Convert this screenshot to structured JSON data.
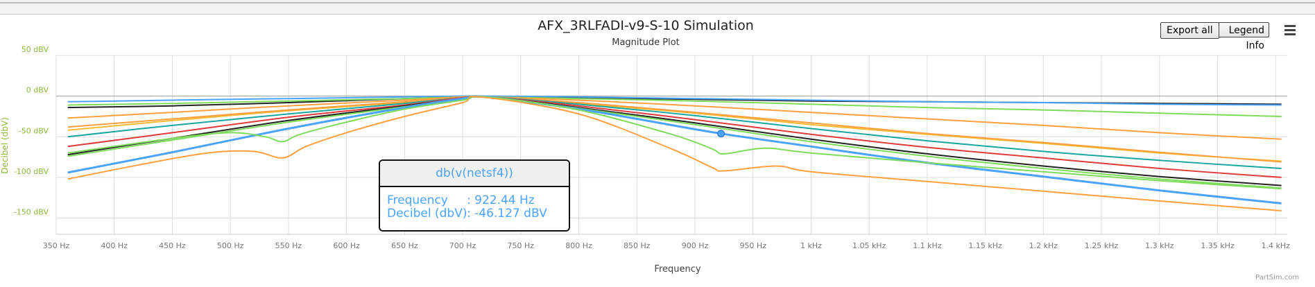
{
  "header": {
    "title": "AFX_3RLFADI-v9-S-10 Simulation",
    "subtitle": "Magnitude Plot",
    "export_label": "Export all",
    "legend_label": "Legend Info",
    "menu_icon": "hamburger-menu-icon"
  },
  "tooltip": {
    "series": "db(v(netsf4))",
    "frequency_label": "Frequency",
    "frequency_value": ": 922.44 Hz",
    "decibel_label": "Decibel (dbV)",
    "decibel_value": ": -46.127 dBV",
    "point": [
      922.44,
      -46.127
    ]
  },
  "credit": "PartSim.com",
  "chart_data": {
    "type": "line",
    "title": "AFX_3RLFADI-v9-S-10 Simulation",
    "subtitle": "Magnitude Plot",
    "xlabel": "Frequency",
    "ylabel": "Decibel (dbV)",
    "xlim": [
      350,
      1410
    ],
    "ylim": [
      -170,
      50
    ],
    "x_ticks": [
      350,
      400,
      450,
      500,
      550,
      600,
      650,
      700,
      750,
      800,
      850,
      900,
      950,
      1000,
      1050,
      1100,
      1150,
      1200,
      1250,
      1300,
      1350,
      1400
    ],
    "x_tick_labels": [
      "350 Hz",
      "400 Hz",
      "450 Hz",
      "500 Hz",
      "550 Hz",
      "600 Hz",
      "650 Hz",
      "700 Hz",
      "750 Hz",
      "800 Hz",
      "850 Hz",
      "900 Hz",
      "950 Hz",
      "1 kHz",
      "1.05 kHz",
      "1.1 kHz",
      "1.15 kHz",
      "1.2 kHz",
      "1.25 kHz",
      "1.3 kHz",
      "1.35 kHz",
      "1.4 kHz"
    ],
    "y_ticks": [
      50,
      0,
      -50,
      -100,
      -150
    ],
    "y_tick_labels": [
      "50 dBV",
      "0 dBV",
      "-50 dBV",
      "-100 dBV",
      "-150 dBV"
    ],
    "grid": true,
    "legend": "none",
    "series": [
      {
        "color": "#222222",
        "width": 2,
        "x": [
          360,
          450,
          550,
          650,
          700,
          720,
          800,
          900,
          1000,
          1100,
          1200,
          1300,
          1405
        ],
        "y": [
          -14,
          -12,
          -8,
          -3,
          -1,
          -1,
          -2,
          -4,
          -6,
          -7,
          -8,
          -9,
          -10
        ]
      },
      {
        "color": "#4aa3ff",
        "width": 2,
        "x": [
          360,
          450,
          550,
          650,
          700,
          720,
          800,
          900,
          1000,
          1100,
          1200,
          1300,
          1405
        ],
        "y": [
          -7,
          -5,
          -3,
          -1,
          0,
          0,
          -1,
          -3,
          -5,
          -7,
          -8,
          -10,
          -11
        ]
      },
      {
        "color": "#7ddc5a",
        "width": 2,
        "x": [
          360,
          450,
          550,
          650,
          700,
          720,
          800,
          900,
          1000,
          1100,
          1200,
          1300,
          1405
        ],
        "y": [
          -11,
          -9,
          -6,
          -3,
          -1,
          -1,
          -3,
          -6,
          -10,
          -14,
          -17,
          -21,
          -25
        ]
      },
      {
        "color": "#ffa040",
        "width": 2,
        "x": [
          360,
          450,
          550,
          650,
          700,
          720,
          800,
          900,
          1000,
          1100,
          1200,
          1300,
          1405
        ],
        "y": [
          -27,
          -20,
          -12,
          -5,
          -1,
          -1,
          -5,
          -12,
          -20,
          -28,
          -36,
          -45,
          -53
        ]
      },
      {
        "color": "#f5b932",
        "width": 2,
        "x": [
          360,
          450,
          550,
          650,
          700,
          720,
          800,
          900,
          1000,
          1100,
          1200,
          1300,
          1405
        ],
        "y": [
          -42,
          -30,
          -18,
          -8,
          -2,
          -1,
          -9,
          -21,
          -35,
          -47,
          -58,
          -70,
          -80
        ]
      },
      {
        "color": "#ffa040",
        "width": 2,
        "x": [
          360,
          450,
          550,
          650,
          700,
          720,
          800,
          900,
          1000,
          1100,
          1200,
          1300,
          1405
        ],
        "y": [
          -38,
          -28,
          -17,
          -7,
          -2,
          -1,
          -8,
          -20,
          -33,
          -46,
          -57,
          -69,
          -81
        ]
      },
      {
        "color": "#1aa6a0",
        "width": 2,
        "x": [
          360,
          450,
          550,
          650,
          700,
          720,
          800,
          900,
          1000,
          1100,
          1200,
          1300,
          1405
        ],
        "y": [
          -50,
          -36,
          -22,
          -9,
          -2,
          -1,
          -10,
          -24,
          -40,
          -55,
          -68,
          -79,
          -89
        ]
      },
      {
        "color": "#e03a3a",
        "width": 2,
        "x": [
          360,
          450,
          550,
          650,
          700,
          720,
          800,
          900,
          1000,
          1100,
          1200,
          1300,
          1405
        ],
        "y": [
          -62,
          -45,
          -26,
          -11,
          -2,
          -1,
          -12,
          -29,
          -47,
          -63,
          -76,
          -89,
          -100
        ]
      },
      {
        "color": "#222222",
        "width": 2,
        "x": [
          360,
          450,
          550,
          650,
          700,
          720,
          800,
          900,
          1000,
          1100,
          1200,
          1300,
          1405
        ],
        "y": [
          -72,
          -52,
          -30,
          -12,
          -3,
          -1,
          -14,
          -33,
          -53,
          -71,
          -86,
          -99,
          -110
        ]
      },
      {
        "color": "#7ddc5a",
        "width": 2,
        "x": [
          360,
          450,
          550,
          650,
          700,
          720,
          800,
          900,
          1000,
          1100,
          1200,
          1300,
          1405
        ],
        "y": [
          -74,
          -54,
          -32,
          -13,
          -3,
          -1,
          -15,
          -35,
          -56,
          -74,
          -89,
          -102,
          -113
        ]
      },
      {
        "color": "#4aa3ff",
        "width": 3,
        "x": [
          360,
          450,
          550,
          650,
          700,
          720,
          800,
          850,
          922.44,
          1000,
          1100,
          1200,
          1300,
          1405
        ],
        "y": [
          -94,
          -69,
          -40,
          -14,
          -3,
          -1,
          -16,
          -28,
          -46.1,
          -62,
          -82,
          -99,
          -116,
          -132
        ]
      },
      {
        "color": "#7ddc5a",
        "width": 2,
        "x": [
          360,
          450,
          500,
          530,
          545,
          560,
          600,
          650,
          700,
          720,
          800,
          880,
          915,
          925,
          960,
          1000,
          1100,
          1200,
          1300,
          1405
        ],
        "y": [
          -70,
          -52,
          -45,
          -50,
          -56,
          -47,
          -32,
          -16,
          -5,
          -1,
          -17,
          -47,
          -65,
          -71,
          -64,
          -70,
          -82,
          -93,
          -104,
          -114
        ]
      },
      {
        "color": "#ffa040",
        "width": 2,
        "x": [
          360,
          420,
          480,
          520,
          545,
          565,
          600,
          650,
          700,
          715,
          800,
          880,
          915,
          925,
          970,
          1000,
          1100,
          1200,
          1300,
          1405
        ],
        "y": [
          -102,
          -85,
          -70,
          -68,
          -76,
          -62,
          -45,
          -25,
          -8,
          -1,
          -22,
          -65,
          -88,
          -92,
          -86,
          -93,
          -105,
          -117,
          -129,
          -141
        ]
      }
    ]
  }
}
